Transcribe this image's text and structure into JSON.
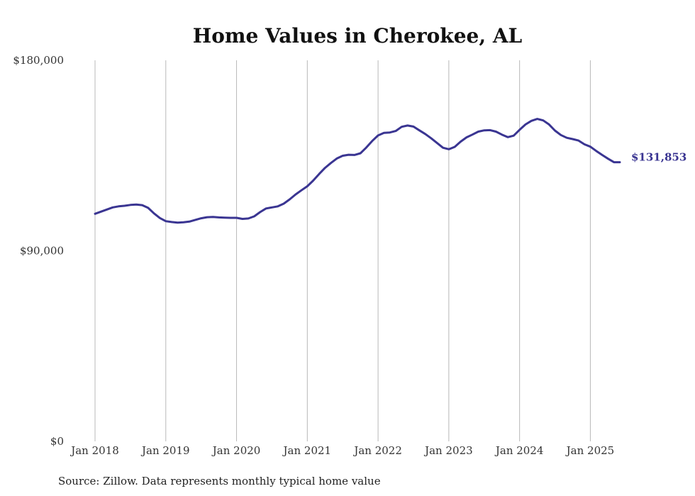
{
  "chart_data": {
    "type": "line",
    "title": "Home Values in Cherokee, AL",
    "xlabel": "",
    "ylabel": "",
    "y_tick_labels": [
      "$0",
      "$90,000",
      "$180,000"
    ],
    "y_tick_values": [
      0,
      90000,
      180000
    ],
    "ylim": [
      0,
      180000
    ],
    "x_tick_labels": [
      "Jan 2018",
      "Jan 2019",
      "Jan 2020",
      "Jan 2021",
      "Jan 2022",
      "Jan 2023",
      "Jan 2024",
      "Jan 2025"
    ],
    "x_tick_dates": [
      "2018-01",
      "2019-01",
      "2020-01",
      "2021-01",
      "2022-01",
      "2023-01",
      "2024-01",
      "2025-01"
    ],
    "xlim": [
      "2018-01",
      "2025-06"
    ],
    "grid": "vertical",
    "line_color": "#3a3592",
    "end_label": "$131,853",
    "series": [
      {
        "x": [
          "2018-01",
          "2018-02",
          "2018-03",
          "2018-04",
          "2018-05",
          "2018-06",
          "2018-07",
          "2018-08",
          "2018-09",
          "2018-10",
          "2018-11",
          "2018-12",
          "2019-01",
          "2019-02",
          "2019-03",
          "2019-04",
          "2019-05",
          "2019-06",
          "2019-07",
          "2019-08",
          "2019-09",
          "2019-10",
          "2019-11",
          "2019-12",
          "2020-01",
          "2020-02",
          "2020-03",
          "2020-04",
          "2020-05",
          "2020-06",
          "2020-07",
          "2020-08",
          "2020-09",
          "2020-10",
          "2020-11",
          "2020-12",
          "2021-01",
          "2021-02",
          "2021-03",
          "2021-04",
          "2021-05",
          "2021-06",
          "2021-07",
          "2021-08",
          "2021-09",
          "2021-10",
          "2021-11",
          "2021-12",
          "2022-01",
          "2022-02",
          "2022-03",
          "2022-04",
          "2022-05",
          "2022-06",
          "2022-07",
          "2022-08",
          "2022-09",
          "2022-10",
          "2022-11",
          "2022-12",
          "2023-01",
          "2023-02",
          "2023-03",
          "2023-04",
          "2023-05",
          "2023-06",
          "2023-07",
          "2023-08",
          "2023-09",
          "2023-10",
          "2023-11",
          "2023-12",
          "2024-01",
          "2024-02",
          "2024-03",
          "2024-04",
          "2024-05",
          "2024-06",
          "2024-07",
          "2024-08",
          "2024-09",
          "2024-10",
          "2024-11",
          "2024-12",
          "2025-01",
          "2025-02",
          "2025-03",
          "2025-04",
          "2025-05",
          "2025-06"
        ],
        "values": [
          107500,
          108500,
          109500,
          110500,
          111000,
          111300,
          111700,
          111900,
          111600,
          110300,
          107700,
          105500,
          104000,
          103600,
          103300,
          103500,
          103800,
          104600,
          105400,
          105900,
          106000,
          105800,
          105700,
          105600,
          105600,
          105100,
          105300,
          106300,
          108300,
          110000,
          110500,
          111000,
          112300,
          114300,
          116600,
          118600,
          120500,
          123200,
          126300,
          129200,
          131500,
          133600,
          134900,
          135400,
          135300,
          136100,
          138800,
          141900,
          144500,
          145700,
          145900,
          146600,
          148600,
          149200,
          148700,
          146900,
          145200,
          143200,
          141000,
          138700,
          138000,
          139100,
          141600,
          143600,
          144900,
          146300,
          146900,
          147000,
          146300,
          144900,
          143700,
          144400,
          147200,
          149700,
          151400,
          152300,
          151600,
          149700,
          146800,
          144700,
          143400,
          142800,
          142100,
          140300,
          139200,
          137200,
          135300,
          133500,
          131853,
          131853
        ]
      }
    ]
  },
  "source_note": "Source: Zillow. Data represents monthly typical home value"
}
